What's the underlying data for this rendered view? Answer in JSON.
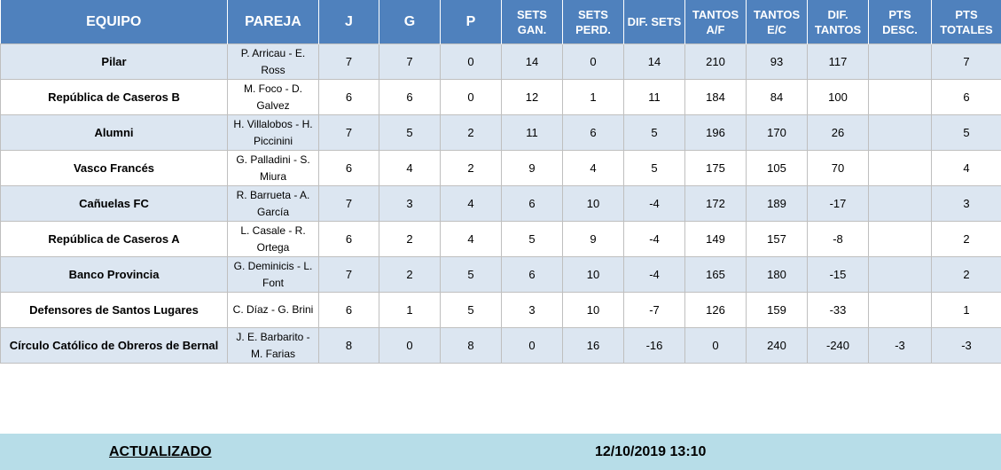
{
  "headers": {
    "equipo": "EQUIPO",
    "pareja": "PAREJA",
    "j": "J",
    "g": "G",
    "p": "P",
    "sets_gan": "SETS GAN.",
    "sets_perd": "SETS PERD.",
    "dif_sets": "DIF. SETS",
    "tantos_af": "TANTOS A/F",
    "tantos_ec": "TANTOS E/C",
    "dif_tantos": "DIF. TANTOS",
    "pts_desc": "PTS DESC.",
    "pts_totales": "PTS TOTALES"
  },
  "rows": [
    {
      "equipo": "Pilar",
      "pareja": "P. Arricau - E. Ross",
      "j": "7",
      "g": "7",
      "p": "0",
      "sets_gan": "14",
      "sets_perd": "0",
      "dif_sets": "14",
      "tantos_af": "210",
      "tantos_ec": "93",
      "dif_tantos": "117",
      "pts_desc": "",
      "pts_totales": "7"
    },
    {
      "equipo": "República de Caseros B",
      "pareja": "M. Foco - D. Galvez",
      "j": "6",
      "g": "6",
      "p": "0",
      "sets_gan": "12",
      "sets_perd": "1",
      "dif_sets": "11",
      "tantos_af": "184",
      "tantos_ec": "84",
      "dif_tantos": "100",
      "pts_desc": "",
      "pts_totales": "6"
    },
    {
      "equipo": "Alumni",
      "pareja": "H. Villalobos - H. Piccinini",
      "j": "7",
      "g": "5",
      "p": "2",
      "sets_gan": "11",
      "sets_perd": "6",
      "dif_sets": "5",
      "tantos_af": "196",
      "tantos_ec": "170",
      "dif_tantos": "26",
      "pts_desc": "",
      "pts_totales": "5"
    },
    {
      "equipo": "Vasco Francés",
      "pareja": "G. Palladini - S. Miura",
      "j": "6",
      "g": "4",
      "p": "2",
      "sets_gan": "9",
      "sets_perd": "4",
      "dif_sets": "5",
      "tantos_af": "175",
      "tantos_ec": "105",
      "dif_tantos": "70",
      "pts_desc": "",
      "pts_totales": "4"
    },
    {
      "equipo": "Cañuelas FC",
      "pareja": "R. Barrueta - A. García",
      "j": "7",
      "g": "3",
      "p": "4",
      "sets_gan": "6",
      "sets_perd": "10",
      "dif_sets": "-4",
      "tantos_af": "172",
      "tantos_ec": "189",
      "dif_tantos": "-17",
      "pts_desc": "",
      "pts_totales": "3"
    },
    {
      "equipo": "República de Caseros A",
      "pareja": "L. Casale - R. Ortega",
      "j": "6",
      "g": "2",
      "p": "4",
      "sets_gan": "5",
      "sets_perd": "9",
      "dif_sets": "-4",
      "tantos_af": "149",
      "tantos_ec": "157",
      "dif_tantos": "-8",
      "pts_desc": "",
      "pts_totales": "2"
    },
    {
      "equipo": "Banco Provincia",
      "pareja": "G. Deminicis - L. Font",
      "j": "7",
      "g": "2",
      "p": "5",
      "sets_gan": "6",
      "sets_perd": "10",
      "dif_sets": "-4",
      "tantos_af": "165",
      "tantos_ec": "180",
      "dif_tantos": "-15",
      "pts_desc": "",
      "pts_totales": "2"
    },
    {
      "equipo": "Defensores de Santos Lugares",
      "pareja": "C. Díaz - G. Brini",
      "j": "6",
      "g": "1",
      "p": "5",
      "sets_gan": "3",
      "sets_perd": "10",
      "dif_sets": "-7",
      "tantos_af": "126",
      "tantos_ec": "159",
      "dif_tantos": "-33",
      "pts_desc": "",
      "pts_totales": "1"
    },
    {
      "equipo": "Círculo Católico de Obreros de Bernal",
      "pareja": "J. E. Barbarito - M. Farias",
      "j": "8",
      "g": "0",
      "p": "8",
      "sets_gan": "0",
      "sets_perd": "16",
      "dif_sets": "-16",
      "tantos_af": "0",
      "tantos_ec": "240",
      "dif_tantos": "-240",
      "pts_desc": "-3",
      "pts_totales": "-3"
    }
  ],
  "footer": {
    "label": "ACTUALIZADO",
    "timestamp": "12/10/2019 13:10"
  },
  "colors": {
    "header_bg": "#4f81bd",
    "band_bg": "#dce6f1",
    "footer_bg": "#b7dde8"
  }
}
